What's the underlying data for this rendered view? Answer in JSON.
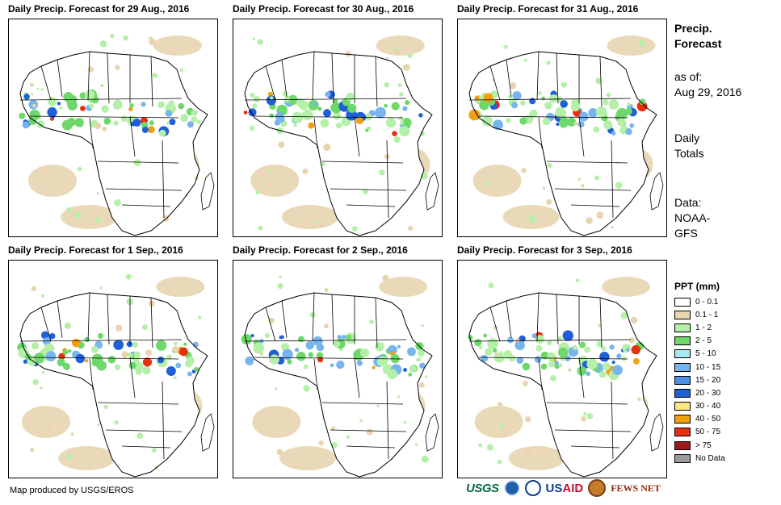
{
  "panels": [
    {
      "title": "Daily Precip. Forecast for 29 Aug., 2016"
    },
    {
      "title": "Daily Precip. Forecast for 30 Aug., 2016"
    },
    {
      "title": "Daily Precip. Forecast for 31 Aug., 2016"
    },
    {
      "title": "Daily Precip. Forecast for 1 Sep., 2016"
    },
    {
      "title": "Daily Precip. Forecast for 2 Sep., 2016"
    },
    {
      "title": "Daily Precip. Forecast for 3 Sep., 2016"
    }
  ],
  "side": {
    "title_line1": "Precip.",
    "title_line2": "Forecast",
    "asof_label": "as of:",
    "asof_date": "Aug 29, 2016",
    "totals_line1": "Daily",
    "totals_line2": "Totals",
    "data_line1": "Data:",
    "data_line2": "NOAA-",
    "data_line3": "GFS"
  },
  "legend": {
    "title": "PPT (mm)",
    "items": [
      {
        "label": "0 - 0.1",
        "color": "#ffffff"
      },
      {
        "label": "0.1 - 1",
        "color": "#e8d5b0"
      },
      {
        "label": "1 - 2",
        "color": "#b5f0a8"
      },
      {
        "label": "2 - 5",
        "color": "#6fd86a"
      },
      {
        "label": "5 - 10",
        "color": "#a8e8f0"
      },
      {
        "label": "10 - 15",
        "color": "#78b4ee"
      },
      {
        "label": "15 - 20",
        "color": "#4a90e8"
      },
      {
        "label": "20 - 30",
        "color": "#1f5fd8"
      },
      {
        "label": "30 - 40",
        "color": "#ffe680"
      },
      {
        "label": "40 - 50",
        "color": "#f0a010"
      },
      {
        "label": "50 - 75",
        "color": "#e83010"
      },
      {
        "label": "> 75",
        "color": "#a01818"
      },
      {
        "label": "No Data",
        "color": "#9c9c9c"
      }
    ]
  },
  "footer": {
    "credit": "Map produced by USGS/EROS",
    "usgs": "USGS",
    "usaid_us": "US",
    "usaid_aid": "AID",
    "fews": "FEWS NET"
  }
}
